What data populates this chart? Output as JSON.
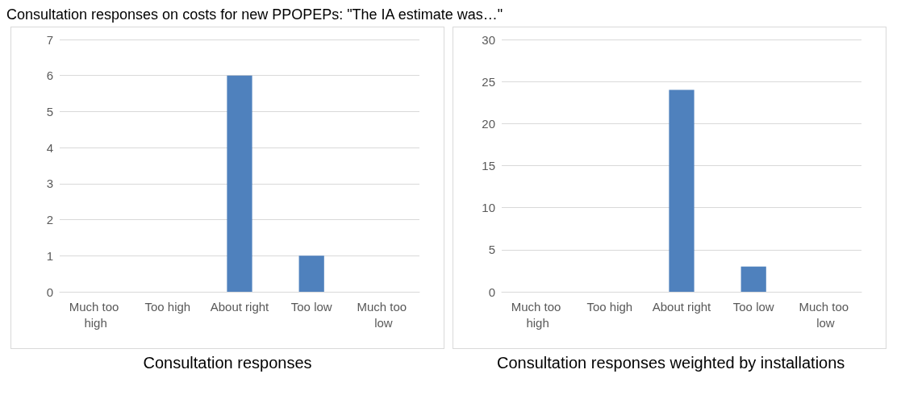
{
  "chart_data": [
    {
      "type": "bar",
      "title": "Consultation responses",
      "annotations": [
        "Consultation responses on costs for new PPOPEPs: \"The IA estimate was…\""
      ],
      "categories": [
        "Much too high",
        "Too high",
        "About right",
        "Too low",
        "Much too low"
      ],
      "values": [
        0,
        0,
        6,
        1,
        0
      ],
      "color": "#4f81bd",
      "ylim": [
        0,
        7
      ],
      "yticks": [
        0,
        1,
        2,
        3,
        4,
        5,
        6,
        7
      ],
      "grid": "y"
    },
    {
      "type": "bar",
      "title": "Consultation responses weighted by installations",
      "categories": [
        "Much too high",
        "Too high",
        "About right",
        "Too low",
        "Much too low"
      ],
      "values": [
        0,
        0,
        24,
        3,
        0
      ],
      "color": "#4f81bd",
      "ylim": [
        0,
        30
      ],
      "yticks": [
        0,
        5,
        10,
        15,
        20,
        25,
        30
      ],
      "grid": "y"
    }
  ]
}
